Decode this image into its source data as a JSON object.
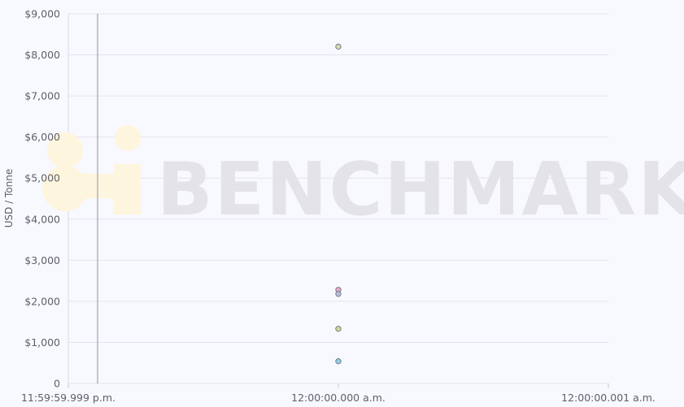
{
  "chart_data": {
    "type": "scatter",
    "ylabel": "USD / Tonne",
    "ylim": [
      0,
      9000
    ],
    "y_ticks": [
      0,
      1000,
      2000,
      3000,
      4000,
      5000,
      6000,
      7000,
      8000,
      9000
    ],
    "y_tick_labels": [
      "0",
      "$1,000",
      "$2,000",
      "$3,000",
      "$4,000",
      "$5,000",
      "$6,000",
      "$7,000",
      "$8,000",
      "$9,000"
    ],
    "x_ticks": [
      "11:59:59.999 p.m.",
      "12:00:00.000 a.m.",
      "12:00:00.001 a.m."
    ],
    "grid": true,
    "points": [
      {
        "x": "12:00:00.000 a.m.",
        "y": 8200,
        "color": "#d4dcae"
      },
      {
        "x": "12:00:00.000 a.m.",
        "y": 2280,
        "color": "#e6a9c6"
      },
      {
        "x": "12:00:00.000 a.m.",
        "y": 2180,
        "color": "#b6bfd9"
      },
      {
        "x": "12:00:00.000 a.m.",
        "y": 1330,
        "color": "#cbdb8f"
      },
      {
        "x": "12:00:00.000 a.m.",
        "y": 540,
        "color": "#8fcfe0"
      }
    ],
    "watermark": "BENCHMARK"
  },
  "colors": {
    "background": "#f8f9fe",
    "grid": "#e3e4ec",
    "watermark_text": "#e3e3e9",
    "watermark_logo": "#fdf5dd"
  }
}
